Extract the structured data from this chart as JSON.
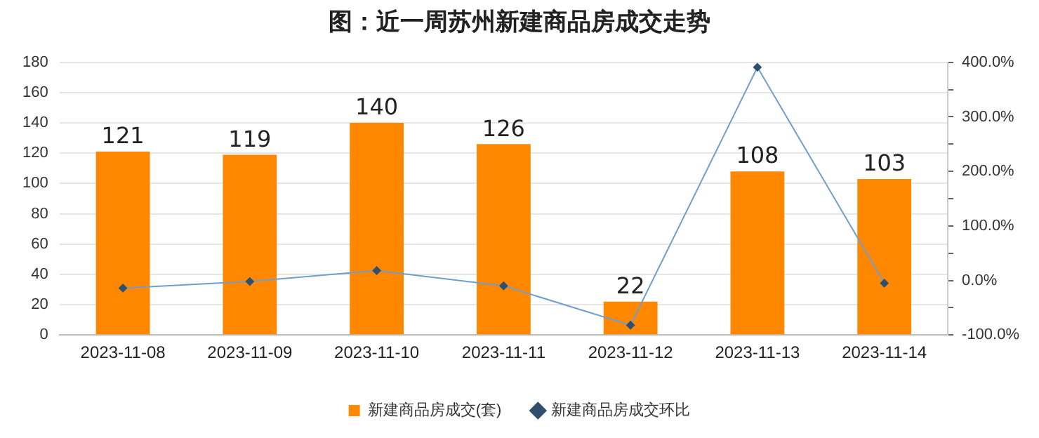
{
  "chart_data": {
    "type": "bar",
    "title": "图：近一周苏州新建商品房成交走势",
    "categories": [
      "2023-11-08",
      "2023-11-09",
      "2023-11-10",
      "2023-11-11",
      "2023-11-12",
      "2023-11-13",
      "2023-11-14"
    ],
    "series": [
      {
        "name": "新建商品房成交(套)",
        "color": "#ff8800",
        "values": [
          121,
          119,
          140,
          126,
          22,
          108,
          103
        ],
        "data_labels": true
      },
      {
        "name": "新建商品房成交环比",
        "type": "line",
        "axis": "y2",
        "color": "#6f9fcf",
        "marker": "diamond",
        "values": [
          -14,
          -2,
          18,
          -10,
          -82,
          391,
          -5
        ]
      }
    ],
    "ylim": [
      0,
      180
    ],
    "yticks": [
      0,
      20,
      40,
      60,
      80,
      100,
      120,
      140,
      160,
      180
    ],
    "y2lim": [
      -100,
      400
    ],
    "y2ticks": [
      {
        "value": -100,
        "label": "-100.0%"
      },
      {
        "value": -50,
        "label": null
      },
      {
        "value": 0,
        "label": "0.0%"
      },
      {
        "value": 50,
        "label": null
      },
      {
        "value": 100,
        "label": "100.0%"
      },
      {
        "value": 150,
        "label": null
      },
      {
        "value": 200,
        "label": "200.0%"
      },
      {
        "value": 250,
        "label": null
      },
      {
        "value": 300,
        "label": "300.0%"
      },
      {
        "value": 350,
        "label": null
      },
      {
        "value": 400,
        "label": "400.0%"
      }
    ],
    "grid": "y",
    "legend": "bottom"
  }
}
